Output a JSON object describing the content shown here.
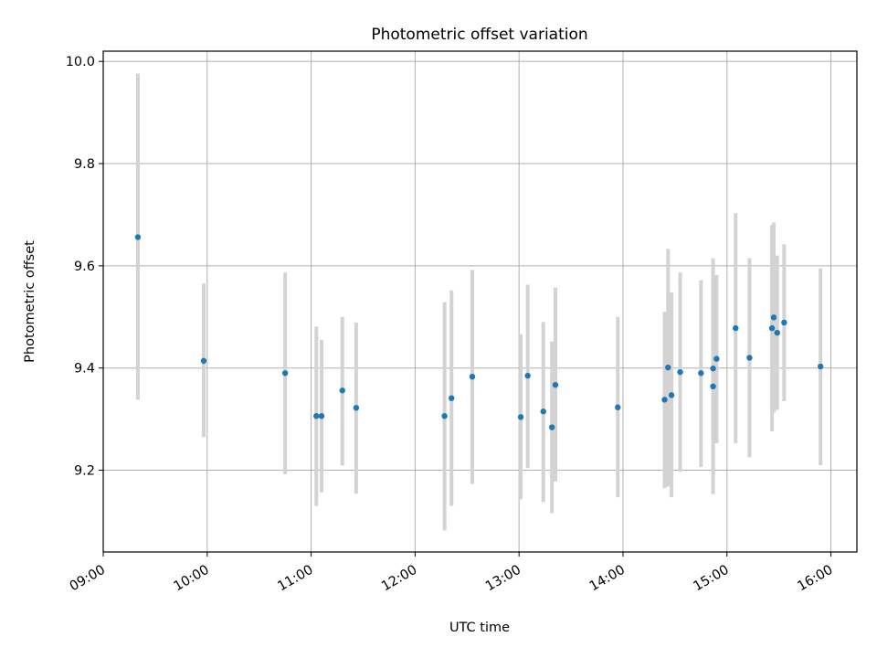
{
  "chart_data": {
    "type": "scatter",
    "title": "Photometric offset variation",
    "xlabel": "UTC time",
    "ylabel": "Photometric offset",
    "xlim": [
      "09:00",
      "16:15"
    ],
    "ylim": [
      9.04,
      10.02
    ],
    "x_ticks": [
      "09:00",
      "10:00",
      "11:00",
      "12:00",
      "13:00",
      "14:00",
      "15:00",
      "16:00"
    ],
    "y_ticks": [
      "9.2",
      "9.4",
      "9.6",
      "9.8",
      "10.0"
    ],
    "grid": true,
    "point_color": "#1f77b4",
    "errorbar_color": "#d3d3d3",
    "points": [
      {
        "x": "09:20",
        "y": 9.656,
        "ylow": 9.338,
        "yhigh": 9.976
      },
      {
        "x": "09:58",
        "y": 9.414,
        "ylow": 9.265,
        "yhigh": 9.565
      },
      {
        "x": "10:45",
        "y": 9.39,
        "ylow": 9.192,
        "yhigh": 9.587
      },
      {
        "x": "11:03",
        "y": 9.306,
        "ylow": 9.13,
        "yhigh": 9.481
      },
      {
        "x": "11:06",
        "y": 9.306,
        "ylow": 9.157,
        "yhigh": 9.455
      },
      {
        "x": "11:18",
        "y": 9.356,
        "ylow": 9.209,
        "yhigh": 9.5
      },
      {
        "x": "11:26",
        "y": 9.322,
        "ylow": 9.154,
        "yhigh": 9.489
      },
      {
        "x": "12:17",
        "y": 9.306,
        "ylow": 9.082,
        "yhigh": 9.529
      },
      {
        "x": "12:21",
        "y": 9.341,
        "ylow": 9.13,
        "yhigh": 9.552
      },
      {
        "x": "12:33",
        "y": 9.383,
        "ylow": 9.173,
        "yhigh": 9.592
      },
      {
        "x": "13:01",
        "y": 9.304,
        "ylow": 9.143,
        "yhigh": 9.466
      },
      {
        "x": "13:05",
        "y": 9.385,
        "ylow": 9.204,
        "yhigh": 9.563
      },
      {
        "x": "13:14",
        "y": 9.315,
        "ylow": 9.138,
        "yhigh": 9.49
      },
      {
        "x": "13:19",
        "y": 9.284,
        "ylow": 9.116,
        "yhigh": 9.452
      },
      {
        "x": "13:21",
        "y": 9.367,
        "ylow": 9.178,
        "yhigh": 9.557
      },
      {
        "x": "13:57",
        "y": 9.323,
        "ylow": 9.147,
        "yhigh": 9.5
      },
      {
        "x": "14:24",
        "y": 9.338,
        "ylow": 9.165,
        "yhigh": 9.51
      },
      {
        "x": "14:26",
        "y": 9.401,
        "ylow": 9.168,
        "yhigh": 9.633
      },
      {
        "x": "14:28",
        "y": 9.347,
        "ylow": 9.147,
        "yhigh": 9.548
      },
      {
        "x": "14:33",
        "y": 9.392,
        "ylow": 9.197,
        "yhigh": 9.587
      },
      {
        "x": "14:45",
        "y": 9.39,
        "ylow": 9.206,
        "yhigh": 9.572
      },
      {
        "x": "14:52",
        "y": 9.399,
        "ylow": 9.183,
        "yhigh": 9.615
      },
      {
        "x": "14:52",
        "y": 9.364,
        "ylow": 9.153,
        "yhigh": 9.575
      },
      {
        "x": "14:54",
        "y": 9.418,
        "ylow": 9.253,
        "yhigh": 9.582
      },
      {
        "x": "15:05",
        "y": 9.478,
        "ylow": 9.253,
        "yhigh": 9.703
      },
      {
        "x": "15:13",
        "y": 9.42,
        "ylow": 9.225,
        "yhigh": 9.615
      },
      {
        "x": "15:26",
        "y": 9.478,
        "ylow": 9.276,
        "yhigh": 9.68
      },
      {
        "x": "15:27",
        "y": 9.499,
        "ylow": 9.313,
        "yhigh": 9.685
      },
      {
        "x": "15:29",
        "y": 9.469,
        "ylow": 9.318,
        "yhigh": 9.62
      },
      {
        "x": "15:33",
        "y": 9.489,
        "ylow": 9.335,
        "yhigh": 9.642
      },
      {
        "x": "15:54",
        "y": 9.403,
        "ylow": 9.21,
        "yhigh": 9.595
      }
    ]
  }
}
